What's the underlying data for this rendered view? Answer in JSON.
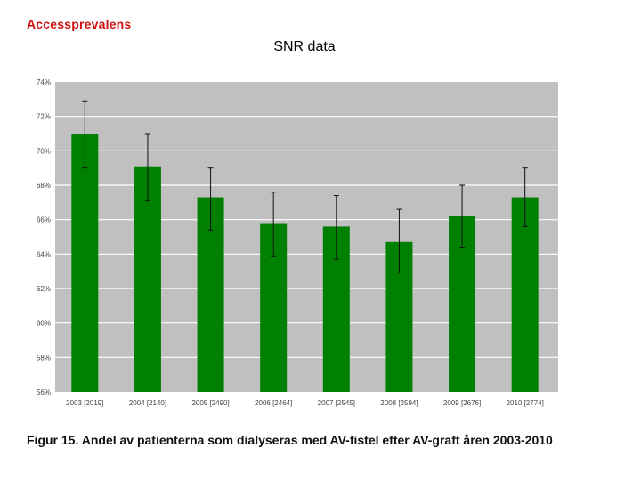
{
  "header": {
    "title": "Accessprevalens"
  },
  "slide": {
    "title": "SNR data"
  },
  "caption": {
    "text": "Figur 15. Andel av patienterna som dialyseras med AV-fistel efter AV-graft åren 2003-2010"
  },
  "colors": {
    "plot_background": "#c0c0c0",
    "bar": "#008000",
    "gridline": "#ffffff",
    "header": "#d01010"
  },
  "chart_data": {
    "type": "bar",
    "title": "",
    "xlabel": "",
    "ylabel": "",
    "categories": [
      "2003 [2019]",
      "2004 [2140]",
      "2005 [2490]",
      "2006 [2464]",
      "2007 [2545]",
      "2008 [2594]",
      "2009 [2676]",
      "2010 [2774]"
    ],
    "values": [
      71.0,
      69.1,
      67.3,
      65.8,
      65.6,
      64.7,
      66.2,
      67.3
    ],
    "error_low": [
      69.0,
      67.1,
      65.4,
      63.9,
      63.7,
      62.9,
      64.4,
      65.6
    ],
    "error_high": [
      72.9,
      71.0,
      69.0,
      67.6,
      67.4,
      66.6,
      68.0,
      69.0
    ],
    "yticks": [
      "56%",
      "58%",
      "60%",
      "62%",
      "64%",
      "66%",
      "68%",
      "70%",
      "72%",
      "74%"
    ],
    "ylim": [
      56,
      74
    ],
    "grid": true,
    "legend": "none"
  }
}
